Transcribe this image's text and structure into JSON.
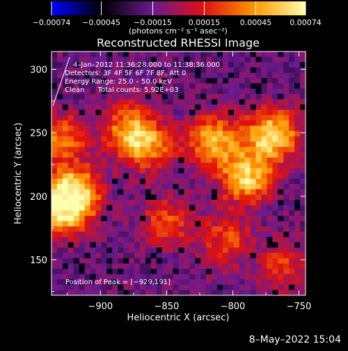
{
  "chart_data": {
    "type": "heatmap",
    "title": "Reconstructed RHESSI Image",
    "xlabel": "Heliocentric X (arcsec)",
    "ylabel": "Heliocentric Y (arcsec)",
    "xlim": [
      -937,
      -745
    ],
    "ylim": [
      122,
      314
    ],
    "x_ticks": [
      -900,
      -850,
      -800,
      -750
    ],
    "x_tick_labels": [
      "−900",
      "−850",
      "−800",
      "−750"
    ],
    "y_ticks": [
      150,
      200,
      250,
      300
    ],
    "y_tick_labels": [
      "150",
      "200",
      "250",
      "300"
    ],
    "colorbar": {
      "range": [
        -0.00074,
        0.00074
      ],
      "ticks": [
        -0.00074,
        -0.00045,
        -0.00015,
        0.00015,
        0.00045,
        0.00074
      ],
      "tick_labels": [
        "−0.00074",
        "−0.00045",
        "−0.00015",
        "0.00015",
        "0.00045",
        "0.00074"
      ],
      "units_label": "(photons cm⁻² s⁻¹ asec⁻²)",
      "colors": [
        "#0000ff",
        "#000000",
        "#6a1a90",
        "#e01010",
        "#ff9a00",
        "#ffffb0"
      ]
    },
    "annotations": [
      "4–Jan–2012 11:36:28.000 to 11:38:36.000",
      "Detectors: 3F 4F 5F 6F 7F 8F, Att 0",
      "Energy Range: 25.0 – 50.0 keV",
      "Clean      Total counts: 5.92E+03",
      "Position of Peak = [−929,191]"
    ],
    "peak_position": [
      -929,
      191
    ],
    "sources": [
      {
        "x": -770,
        "y": 248,
        "strength": 0.92
      },
      {
        "x": -790,
        "y": 215,
        "strength": 0.85
      },
      {
        "x": -815,
        "y": 245,
        "strength": 0.75
      },
      {
        "x": -865,
        "y": 240,
        "strength": 0.65
      },
      {
        "x": -880,
        "y": 255,
        "strength": 0.55
      },
      {
        "x": -929,
        "y": 191,
        "strength": 1.0
      },
      {
        "x": -918,
        "y": 205,
        "strength": 0.7
      },
      {
        "x": -930,
        "y": 245,
        "strength": 0.55
      },
      {
        "x": -850,
        "y": 180,
        "strength": 0.45
      },
      {
        "x": -805,
        "y": 165,
        "strength": 0.45
      },
      {
        "x": -760,
        "y": 145,
        "strength": 0.4
      }
    ]
  },
  "footer": {
    "timestamp": "8–May–2022 15:04"
  }
}
